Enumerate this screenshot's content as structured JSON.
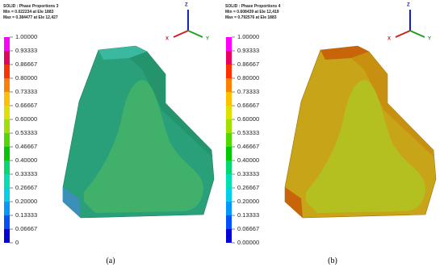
{
  "panels": [
    {
      "header": [
        "SOLID : Phase Proportions 3",
        "Min = 0.022234 at Ele 1883",
        "Max = 0.384477 at Ele 12,427"
      ],
      "legend_labels": [
        "1.00000",
        "0.93333",
        "0.86667",
        "0.80000",
        "0.73333",
        "0.66667",
        "0.60000",
        "0.53333",
        "0.46667",
        "0.40000",
        "0.33333",
        "0.26667",
        "0.20000",
        "0.13333",
        "0.06667",
        "0"
      ],
      "triad": {
        "z": "Z",
        "x": "X",
        "y": "Y"
      },
      "caption": "(a)"
    },
    {
      "header": [
        "SOLID : Phase Proportions 4",
        "Min = 0.608439 at Ele 12,419",
        "Max = 0.792576 at Ele 1883"
      ],
      "legend_labels": [
        "1.00000",
        "0.93333",
        "0.86667",
        "0.80000",
        "0.73333",
        "0.66667",
        "0.60000",
        "0.53333",
        "0.46667",
        "0.40000",
        "0.33333",
        "0.26667",
        "0.20000",
        "0.13333",
        "0.06667",
        "0.00000"
      ],
      "triad": {
        "z": "Z",
        "x": "X",
        "y": "Y"
      },
      "caption": "(b)"
    }
  ]
}
